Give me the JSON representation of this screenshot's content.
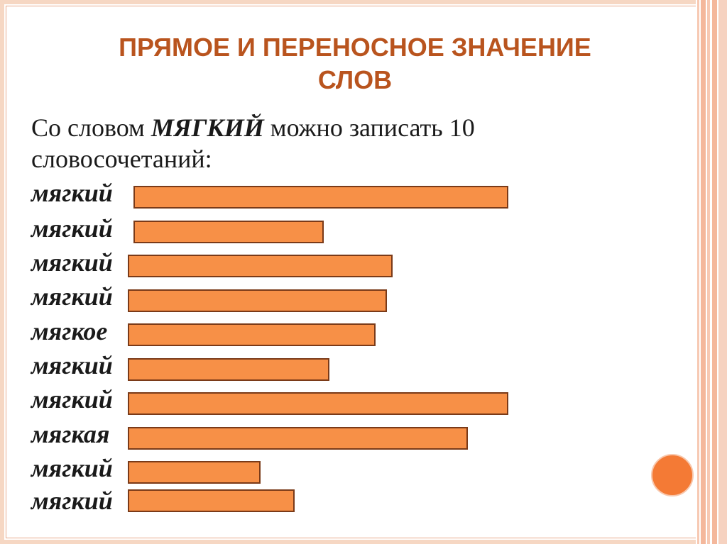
{
  "slide": {
    "title": "ПРЯМОЕ  И  ПЕРЕНОСНОЕ ЗНАЧЕНИЕ\nСЛОВ",
    "intro_prefix": "Со словом ",
    "intro_word": "МЯГКИЙ",
    "intro_suffix": " можно записать 10 словосочетаний:",
    "rows": [
      {
        "label": "мягкий"
      },
      {
        "label": "мягкий"
      },
      {
        "label": "мягкий"
      },
      {
        "label": "мягкий"
      },
      {
        "label": "мягкое"
      },
      {
        "label": "мягкий"
      },
      {
        "label": "мягкий"
      },
      {
        "label": "мягкая"
      },
      {
        "label": "мягкий"
      },
      {
        "label": "мягкий"
      }
    ]
  },
  "colors": {
    "title": "#b9541e",
    "bar_fill": "#f79047",
    "bar_border": "#7a3a18",
    "accent_circle": "#f47a35"
  }
}
